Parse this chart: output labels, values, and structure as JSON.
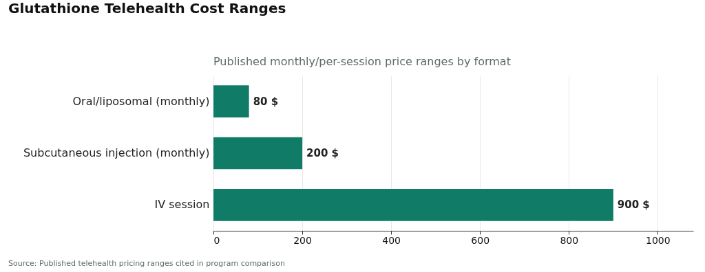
{
  "chart_data": {
    "type": "bar",
    "orientation": "horizontal",
    "title": "Glutathione Telehealth Cost Ranges",
    "subtitle": "Published monthly/per-session price ranges by format",
    "categories": [
      "Oral/liposomal (monthly)",
      "Subcutaneous injection (monthly)",
      "IV session"
    ],
    "values": [
      80,
      200,
      900
    ],
    "value_labels": [
      "80 $",
      "200 $",
      "900 $"
    ],
    "color": "#107c68",
    "xlim": [
      0,
      1080
    ],
    "xticks": [
      0,
      200,
      400,
      600,
      800,
      1000
    ],
    "grid": "x",
    "annotations": [
      "Source: Published telehealth pricing ranges cited in program comparison"
    ]
  }
}
